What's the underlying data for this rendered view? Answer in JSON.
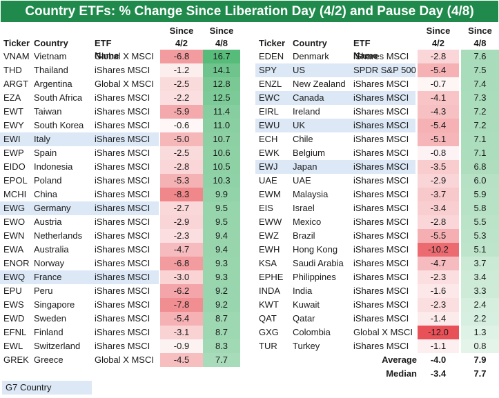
{
  "title": "Country ETFs: % Change Since Liberation Day (4/2) and Pause Day (4/8)",
  "headers": {
    "ticker": "Ticker",
    "country": "Country",
    "etf": "ETF Name",
    "since": "Since",
    "d1": "4/2",
    "d2": "4/8"
  },
  "legend": {
    "g7_label": "G7 Country",
    "g7_color": "#dce8f6"
  },
  "colors": {
    "title_bg": "#1f8a4c",
    "negative": "#e8484f",
    "positive": "#57bb7a"
  },
  "chart_data": {
    "type": "table",
    "title": "Country ETFs: % Change Since Liberation Day (4/2) and Pause Day (4/8)",
    "columns": [
      "Ticker",
      "Country",
      "ETF Name",
      "Since 4/2",
      "Since 4/8"
    ],
    "left": [
      {
        "ticker": "VNAM",
        "country": "Vietnam",
        "etf": "Global X MSCI",
        "since_4_2": -6.8,
        "since_4_8": 16.7,
        "g7": false
      },
      {
        "ticker": "THD",
        "country": "Thailand",
        "etf": "iShares MSCI",
        "since_4_2": -1.2,
        "since_4_8": 14.1,
        "g7": false
      },
      {
        "ticker": "ARGT",
        "country": "Argentina",
        "etf": "Global X MSCI",
        "since_4_2": -2.5,
        "since_4_8": 12.8,
        "g7": false
      },
      {
        "ticker": "EZA",
        "country": "South Africa",
        "etf": "iShares MSCI",
        "since_4_2": -2.2,
        "since_4_8": 12.5,
        "g7": false
      },
      {
        "ticker": "EWT",
        "country": "Taiwan",
        "etf": "iShares MSCI",
        "since_4_2": -5.9,
        "since_4_8": 11.4,
        "g7": false
      },
      {
        "ticker": "EWY",
        "country": "South Korea",
        "etf": "iShares MSCI",
        "since_4_2": -0.6,
        "since_4_8": 11.0,
        "g7": false
      },
      {
        "ticker": "EWI",
        "country": "Italy",
        "etf": "iShares MSCI",
        "since_4_2": -5.0,
        "since_4_8": 10.7,
        "g7": true
      },
      {
        "ticker": "EWP",
        "country": "Spain",
        "etf": "iShares MSCI",
        "since_4_2": -2.5,
        "since_4_8": 10.6,
        "g7": false
      },
      {
        "ticker": "EIDO",
        "country": "Indonesia",
        "etf": "iShares MSCI",
        "since_4_2": -2.8,
        "since_4_8": 10.5,
        "g7": false
      },
      {
        "ticker": "EPOL",
        "country": "Poland",
        "etf": "iShares MSCI",
        "since_4_2": -5.3,
        "since_4_8": 10.3,
        "g7": false
      },
      {
        "ticker": "MCHI",
        "country": "China",
        "etf": "iShares MSCI",
        "since_4_2": -8.3,
        "since_4_8": 9.9,
        "g7": false
      },
      {
        "ticker": "EWG",
        "country": "Germany",
        "etf": "iShares MSCI",
        "since_4_2": -2.7,
        "since_4_8": 9.5,
        "g7": true
      },
      {
        "ticker": "EWO",
        "country": "Austria",
        "etf": "iShares MSCI",
        "since_4_2": -2.9,
        "since_4_8": 9.5,
        "g7": false
      },
      {
        "ticker": "EWN",
        "country": "Netherlands",
        "etf": "iShares MSCI",
        "since_4_2": -2.3,
        "since_4_8": 9.4,
        "g7": false
      },
      {
        "ticker": "EWA",
        "country": "Australia",
        "etf": "iShares MSCI",
        "since_4_2": -4.7,
        "since_4_8": 9.4,
        "g7": false
      },
      {
        "ticker": "ENOR",
        "country": "Norway",
        "etf": "iShares MSCI",
        "since_4_2": -6.8,
        "since_4_8": 9.3,
        "g7": false
      },
      {
        "ticker": "EWQ",
        "country": "France",
        "etf": "iShares MSCI",
        "since_4_2": -3.0,
        "since_4_8": 9.3,
        "g7": true
      },
      {
        "ticker": "EPU",
        "country": "Peru",
        "etf": "iShares MSCI",
        "since_4_2": -6.2,
        "since_4_8": 9.2,
        "g7": false
      },
      {
        "ticker": "EWS",
        "country": "Singapore",
        "etf": "iShares MSCI",
        "since_4_2": -7.8,
        "since_4_8": 9.2,
        "g7": false
      },
      {
        "ticker": "EWD",
        "country": "Sweden",
        "etf": "iShares MSCI",
        "since_4_2": -5.4,
        "since_4_8": 8.7,
        "g7": false
      },
      {
        "ticker": "EFNL",
        "country": "Finland",
        "etf": "iShares MSCI",
        "since_4_2": -3.1,
        "since_4_8": 8.7,
        "g7": false
      },
      {
        "ticker": "EWL",
        "country": "Switzerland",
        "etf": "iShares MSCI",
        "since_4_2": -0.9,
        "since_4_8": 8.3,
        "g7": false
      },
      {
        "ticker": "GREK",
        "country": "Greece",
        "etf": "Global X MSCI",
        "since_4_2": -4.5,
        "since_4_8": 7.7,
        "g7": false
      }
    ],
    "right": [
      {
        "ticker": "EDEN",
        "country": "Denmark",
        "etf": "iShares MSCI",
        "since_4_2": -2.8,
        "since_4_8": 7.6,
        "g7": false
      },
      {
        "ticker": "SPY",
        "country": "US",
        "etf": "SPDR S&P 500",
        "since_4_2": -5.4,
        "since_4_8": 7.5,
        "g7": true
      },
      {
        "ticker": "ENZL",
        "country": "New Zealand",
        "etf": "iShares MSCI",
        "since_4_2": -0.7,
        "since_4_8": 7.4,
        "g7": false
      },
      {
        "ticker": "EWC",
        "country": "Canada",
        "etf": "iShares MSCI",
        "since_4_2": -4.1,
        "since_4_8": 7.3,
        "g7": true
      },
      {
        "ticker": "EIRL",
        "country": "Ireland",
        "etf": "iShares MSCI",
        "since_4_2": -4.3,
        "since_4_8": 7.2,
        "g7": false
      },
      {
        "ticker": "EWU",
        "country": "UK",
        "etf": "iShares MSCI",
        "since_4_2": -5.4,
        "since_4_8": 7.2,
        "g7": true
      },
      {
        "ticker": "ECH",
        "country": "Chile",
        "etf": "iShares MSCI",
        "since_4_2": -5.1,
        "since_4_8": 7.1,
        "g7": false
      },
      {
        "ticker": "EWK",
        "country": "Belgium",
        "etf": "iShares MSCI",
        "since_4_2": -0.8,
        "since_4_8": 7.1,
        "g7": false
      },
      {
        "ticker": "EWJ",
        "country": "Japan",
        "etf": "iShares MSCI",
        "since_4_2": -3.5,
        "since_4_8": 6.8,
        "g7": true
      },
      {
        "ticker": "UAE",
        "country": "UAE",
        "etf": "iShares MSCI",
        "since_4_2": -2.9,
        "since_4_8": 6.0,
        "g7": false
      },
      {
        "ticker": "EWM",
        "country": "Malaysia",
        "etf": "iShares MSCI",
        "since_4_2": -3.7,
        "since_4_8": 5.9,
        "g7": false
      },
      {
        "ticker": "EIS",
        "country": "Israel",
        "etf": "iShares MSCI",
        "since_4_2": -3.4,
        "since_4_8": 5.8,
        "g7": false
      },
      {
        "ticker": "EWW",
        "country": "Mexico",
        "etf": "iShares MSCI",
        "since_4_2": -2.8,
        "since_4_8": 5.5,
        "g7": false
      },
      {
        "ticker": "EWZ",
        "country": "Brazil",
        "etf": "iShares MSCI",
        "since_4_2": -5.5,
        "since_4_8": 5.3,
        "g7": false
      },
      {
        "ticker": "EWH",
        "country": "Hong Kong",
        "etf": "iShares MSCI",
        "since_4_2": -10.2,
        "since_4_8": 5.1,
        "g7": false
      },
      {
        "ticker": "KSA",
        "country": "Saudi Arabia",
        "etf": "iShares MSCI",
        "since_4_2": -4.7,
        "since_4_8": 3.7,
        "g7": false
      },
      {
        "ticker": "EPHE",
        "country": "Philippines",
        "etf": "iShares MSCI",
        "since_4_2": -2.3,
        "since_4_8": 3.4,
        "g7": false
      },
      {
        "ticker": "INDA",
        "country": "India",
        "etf": "iShares MSCI",
        "since_4_2": -1.6,
        "since_4_8": 3.3,
        "g7": false
      },
      {
        "ticker": "KWT",
        "country": "Kuwait",
        "etf": "iShares MSCI",
        "since_4_2": -2.3,
        "since_4_8": 2.4,
        "g7": false
      },
      {
        "ticker": "QAT",
        "country": "Qatar",
        "etf": "iShares MSCI",
        "since_4_2": -1.4,
        "since_4_8": 2.2,
        "g7": false
      },
      {
        "ticker": "GXG",
        "country": "Colombia",
        "etf": "Global X MSCI",
        "since_4_2": -12.0,
        "since_4_8": 1.3,
        "g7": false
      },
      {
        "ticker": "TUR",
        "country": "Turkey",
        "etf": "iShares MSCI",
        "since_4_2": -1.1,
        "since_4_8": 0.8,
        "g7": false
      }
    ],
    "summary": {
      "average_label": "Average",
      "average_4_2": -4.0,
      "average_4_8": 7.9,
      "median_label": "Median",
      "median_4_2": -3.4,
      "median_4_8": 7.7
    }
  }
}
